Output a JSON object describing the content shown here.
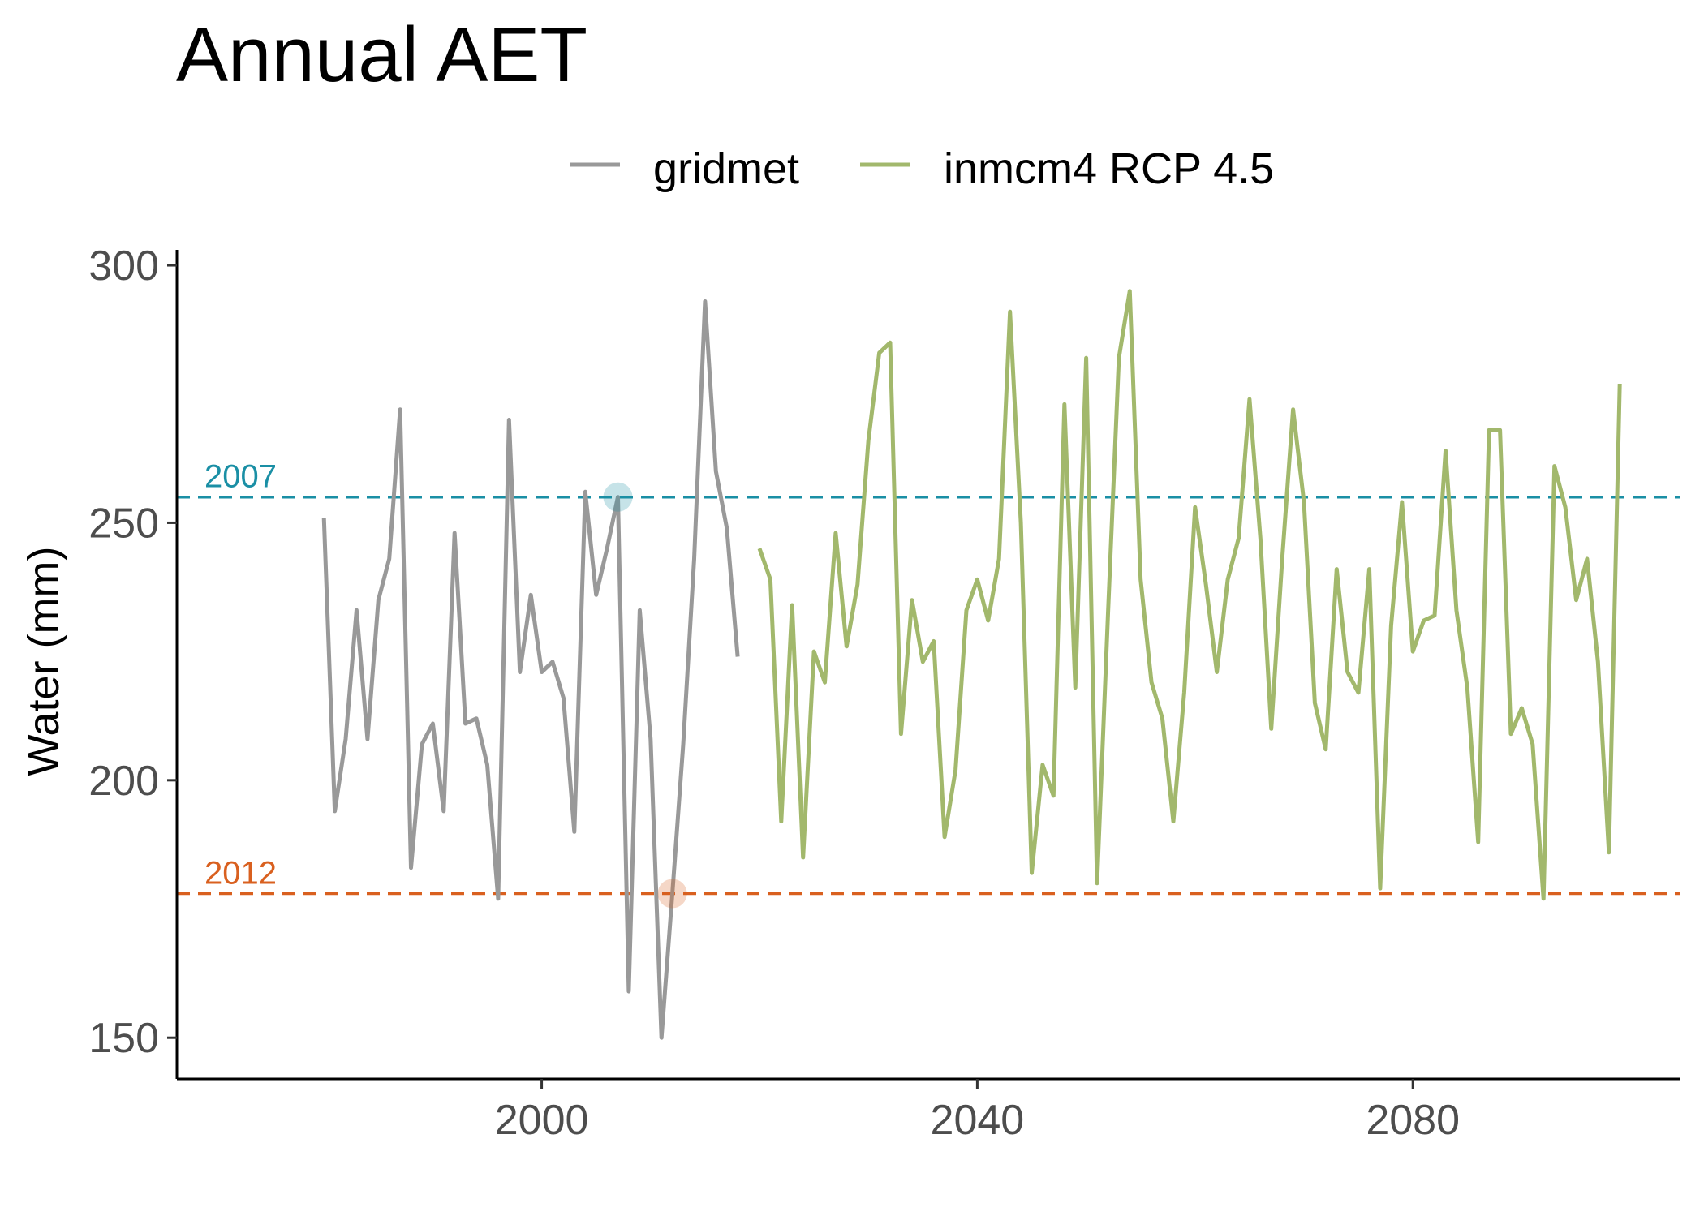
{
  "chart_data": {
    "type": "line",
    "title": "Annual AET",
    "xlabel": "",
    "ylabel": "Water (mm)",
    "xlim": [
      1966.5,
      2104.5
    ],
    "ylim": [
      142.0,
      303.0
    ],
    "x_ticks": [
      "2000",
      "2040",
      "2080"
    ],
    "y_ticks": [
      "150",
      "200",
      "250",
      "300"
    ],
    "grid": false,
    "legend_position": "top",
    "series": [
      {
        "name": "gridmet",
        "color": "#999999",
        "x": [
          1980,
          1981,
          1982,
          1983,
          1984,
          1985,
          1986,
          1987,
          1988,
          1989,
          1990,
          1991,
          1992,
          1993,
          1994,
          1995,
          1996,
          1997,
          1998,
          1999,
          2000,
          2001,
          2002,
          2003,
          2004,
          2005,
          2006,
          2007,
          2008,
          2009,
          2010,
          2011,
          2012,
          2013,
          2014,
          2015,
          2016,
          2017,
          2018
        ],
        "values": [
          251,
          194,
          208,
          233,
          208,
          235,
          243,
          272,
          183,
          207,
          211,
          194,
          248,
          211,
          212,
          203,
          177,
          270,
          221,
          236,
          221,
          223,
          216,
          190,
          256,
          236,
          245,
          255,
          159,
          233,
          208,
          150,
          178,
          207,
          243,
          293,
          260,
          249,
          224
        ]
      },
      {
        "name": "inmcm4 RCP 4.5",
        "color": "#a2b86c",
        "x": [
          2020,
          2021,
          2022,
          2023,
          2024,
          2025,
          2026,
          2027,
          2028,
          2029,
          2030,
          2031,
          2032,
          2033,
          2034,
          2035,
          2036,
          2037,
          2038,
          2039,
          2040,
          2041,
          2042,
          2043,
          2044,
          2045,
          2046,
          2047,
          2048,
          2049,
          2050,
          2051,
          2052,
          2053,
          2054,
          2055,
          2056,
          2057,
          2058,
          2059,
          2060,
          2061,
          2062,
          2063,
          2064,
          2065,
          2066,
          2067,
          2068,
          2069,
          2070,
          2071,
          2072,
          2073,
          2074,
          2075,
          2076,
          2077,
          2078,
          2079,
          2080,
          2081,
          2082,
          2083,
          2084,
          2085,
          2086,
          2087,
          2088,
          2089,
          2090,
          2091,
          2092,
          2093,
          2094,
          2095,
          2096,
          2097,
          2098,
          2099
        ],
        "values": [
          245,
          239,
          192,
          234,
          185,
          225,
          219,
          248,
          226,
          238,
          266,
          283,
          285,
          209,
          235,
          223,
          227,
          189,
          202,
          233,
          239,
          231,
          243,
          291,
          250,
          182,
          203,
          197,
          273,
          218,
          282,
          180,
          232,
          282,
          295,
          239,
          219,
          212,
          192,
          217,
          253,
          238,
          221,
          239,
          247,
          274,
          247,
          210,
          243,
          272,
          254,
          215,
          206,
          241,
          221,
          217,
          241,
          179,
          230,
          254,
          225,
          231,
          232,
          264,
          233,
          218,
          188,
          268,
          268,
          209,
          214,
          207,
          177,
          261,
          253,
          235,
          243,
          223,
          186,
          277
        ]
      }
    ],
    "reference_lines": [
      {
        "label": "2007",
        "value": 255,
        "color": "#1a8fa5",
        "marker_x": 2007
      },
      {
        "label": "2012",
        "value": 178,
        "color": "#d9601f",
        "marker_x": 2012
      }
    ]
  }
}
